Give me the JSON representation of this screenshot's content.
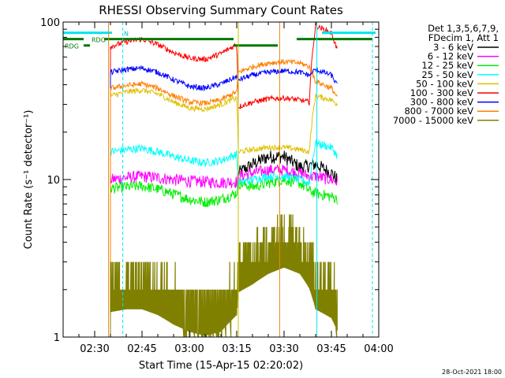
{
  "chart_data": {
    "type": "line",
    "title": "RHESSI Observing Summary Count Rates",
    "xlabel": "Start Time (15-Apr-15 02:20:02)",
    "ylabel": "Count Rate (s⁻¹ detector⁻¹)",
    "yscale": "log",
    "xlim_minutes": [
      20,
      120
    ],
    "ylim": [
      1,
      100
    ],
    "x_tick_labels": [
      "02:30",
      "02:45",
      "03:00",
      "03:15",
      "03:30",
      "03:45",
      "04:00"
    ],
    "x_tick_minutes": [
      30,
      45,
      60,
      75,
      90,
      105,
      120
    ],
    "y_tick_labels": [
      "1",
      "10",
      "100"
    ],
    "y_tick_values": [
      1,
      10,
      100
    ],
    "legend_header": [
      "Det 1,3,5,6,7,9,",
      "FDecim 1, Att 1"
    ],
    "legend_position": "right",
    "corner_date": "28-Oct-2021 18:00",
    "flag_labels": [
      "RDO",
      "RDG",
      "N"
    ],
    "data_gap_minutes": [
      [
        20,
        34
      ],
      [
        118,
        120
      ]
    ],
    "vertical_markers": [
      {
        "minute": 34.4,
        "color": "#e8880e",
        "style": "solid"
      },
      {
        "minute": 38.9,
        "color": "#00e5ee",
        "style": "dashed"
      },
      {
        "minute": 75.5,
        "color": "#c8c000",
        "style": "solid"
      },
      {
        "minute": 88.6,
        "color": "#e8880e",
        "style": "solid"
      },
      {
        "minute": 100.4,
        "color": "#00e5ee",
        "style": "solid"
      },
      {
        "minute": 118.0,
        "color": "#00e5ee",
        "style": "dashed"
      }
    ],
    "flag_bars": [
      {
        "label": "cyan",
        "color": "#00e5ee",
        "segments": [
          [
            20,
            35.5
          ],
          [
            102,
            119
          ]
        ],
        "y_value": 85.5
      },
      {
        "label": "RDO",
        "color": "#007700",
        "segments": [
          [
            20,
            26.5
          ],
          [
            33,
            74
          ],
          [
            94,
            118
          ]
        ],
        "y_value": 78
      },
      {
        "label": "RDG",
        "color": "#007700",
        "segments": [
          [
            26.5,
            28.5
          ],
          [
            74,
            88
          ]
        ],
        "y_value": 71
      }
    ],
    "series": [
      {
        "name": "3 - 6 keV",
        "color": "#000000",
        "x": [
          75.5,
          80,
          85,
          90,
          95,
          100,
          105,
          107
        ],
        "y": [
          11,
          12.5,
          14,
          14,
          12,
          12.5,
          11,
          10
        ]
      },
      {
        "name": "6 - 12 keV",
        "color": "#ff00ff",
        "x": [
          35,
          40,
          45,
          50,
          55,
          60,
          65,
          70,
          75,
          75.5,
          80,
          85,
          90,
          95,
          98,
          100,
          105,
          107
        ],
        "y": [
          10,
          10.3,
          10.5,
          10.3,
          10,
          9.8,
          9.7,
          9.6,
          9.7,
          10.5,
          11,
          11.5,
          11.5,
          11,
          10.5,
          10.5,
          10,
          9.6
        ]
      },
      {
        "name": "12 - 25 keV",
        "color": "#00ee00",
        "x": [
          35,
          40,
          45,
          50,
          55,
          60,
          65,
          70,
          75,
          75.5,
          80,
          85,
          90,
          95,
          98,
          100,
          105,
          107
        ],
        "y": [
          8.8,
          9,
          9.1,
          8.7,
          8.1,
          7.5,
          7.2,
          7.5,
          8.2,
          9.5,
          9,
          9.5,
          10,
          9.5,
          8.5,
          8.2,
          7.8,
          7.5
        ]
      },
      {
        "name": "25 - 50 keV",
        "color": "#00ffff",
        "x": [
          35,
          40,
          45,
          50,
          55,
          60,
          65,
          70,
          75,
          75.5,
          80,
          85,
          90,
          95,
          98,
          100,
          105,
          107
        ],
        "y": [
          15,
          15.5,
          15.8,
          15,
          14,
          13.2,
          12.8,
          13.2,
          14.5,
          9.5,
          10,
          10.5,
          10.5,
          10,
          9.5,
          17,
          16,
          14
        ]
      },
      {
        "name": "50 - 100 keV",
        "color": "#e0c000",
        "x": [
          35,
          40,
          45,
          50,
          55,
          60,
          65,
          70,
          75,
          75.5,
          80,
          85,
          90,
          95,
          98,
          100,
          105,
          107
        ],
        "y": [
          34,
          36,
          37,
          35,
          31,
          28.5,
          28,
          30,
          33,
          15,
          15.5,
          16,
          16,
          15.5,
          15,
          34,
          32,
          30
        ]
      },
      {
        "name": "100 - 300 keV",
        "color": "#ff0000",
        "x": [
          35,
          40,
          45,
          50,
          55,
          60,
          65,
          70,
          75,
          75.5,
          80,
          85,
          90,
          95,
          98,
          100,
          105,
          107
        ],
        "y": [
          70,
          75,
          78,
          72,
          64,
          59,
          58,
          63,
          72,
          29,
          31,
          32.5,
          33,
          32,
          31,
          95,
          85,
          65
        ]
      },
      {
        "name": "300 - 800 keV",
        "color": "#0000ff",
        "x": [
          35,
          40,
          45,
          50,
          55,
          60,
          65,
          70,
          75,
          75.5,
          80,
          85,
          90,
          95,
          98,
          100,
          105,
          107
        ],
        "y": [
          48,
          50,
          51,
          48,
          43,
          39,
          38,
          40.5,
          45,
          43,
          46,
          48,
          49,
          48,
          46,
          50,
          46,
          39
        ]
      },
      {
        "name": "800 - 7000 keV",
        "color": "#ff8000",
        "x": [
          35,
          40,
          45,
          50,
          55,
          60,
          65,
          70,
          75,
          75.5,
          80,
          85,
          90,
          95,
          98,
          100,
          105,
          107
        ],
        "y": [
          38,
          39.5,
          40.5,
          38,
          34,
          31,
          30.5,
          32,
          36,
          48,
          52,
          55,
          56,
          55,
          52,
          42,
          38,
          33
        ]
      },
      {
        "name": "7000 - 15000 keV",
        "color": "#808000",
        "x": [
          35,
          40,
          45,
          50,
          55,
          60,
          65,
          70,
          75,
          75.5,
          80,
          85,
          90,
          95,
          98,
          100,
          105,
          107
        ],
        "y": [
          2.4,
          2.5,
          2.5,
          2.3,
          2.0,
          1.8,
          1.7,
          1.8,
          2.3,
          3.2,
          3.6,
          4.2,
          4.6,
          4.2,
          3.4,
          2.5,
          2.2,
          1.8
        ]
      }
    ]
  }
}
